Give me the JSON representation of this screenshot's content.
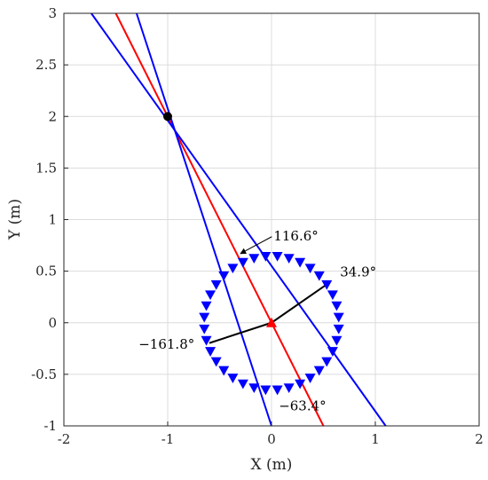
{
  "chart_data": {
    "type": "line",
    "xlabel": "X (m)",
    "ylabel": "Y (m)",
    "xlim": [
      -2,
      2
    ],
    "ylim": [
      -1,
      3
    ],
    "xticks": [
      "-2",
      "-1",
      "0",
      "1",
      "2"
    ],
    "yticks": [
      "-1",
      "-0.5",
      "0",
      "0.5",
      "1",
      "1.5",
      "2",
      "2.5",
      "3"
    ],
    "grid": true,
    "source_point": {
      "x": -1,
      "y": 2,
      "color": "#000000"
    },
    "lines": [
      {
        "color": "#ff0000",
        "points": [
          [
            -1.5,
            3
          ],
          [
            0.5,
            -1
          ]
        ]
      },
      {
        "color": "#0000ff",
        "points": [
          [
            -1.736,
            3
          ],
          [
            1.1,
            -1
          ]
        ]
      },
      {
        "color": "#0000ff",
        "points": [
          [
            -1.3,
            3
          ],
          [
            0,
            -1
          ]
        ]
      }
    ],
    "array": {
      "center": [
        0,
        0
      ],
      "radius": 0.65,
      "elements": 36,
      "marker": "triangle-down",
      "color": "#0000ff"
    },
    "center_marker": {
      "x": 0,
      "y": 0,
      "marker": "triangle-up",
      "color": "#ff0000"
    },
    "rays": [
      {
        "angle_deg": 34.9,
        "length": 0.63
      },
      {
        "angle_deg": -161.8,
        "length": 0.63
      }
    ],
    "annotations": [
      {
        "text": "116.6°",
        "x": 0.02,
        "y": 0.8,
        "arrow_to": [
          -0.3,
          0.67
        ]
      },
      {
        "text": "34.9°",
        "x": 0.66,
        "y": 0.45
      },
      {
        "text": "−161.8°",
        "x": -1.28,
        "y": -0.25
      },
      {
        "text": "−63.4°",
        "x": 0.07,
        "y": -0.85
      }
    ]
  }
}
